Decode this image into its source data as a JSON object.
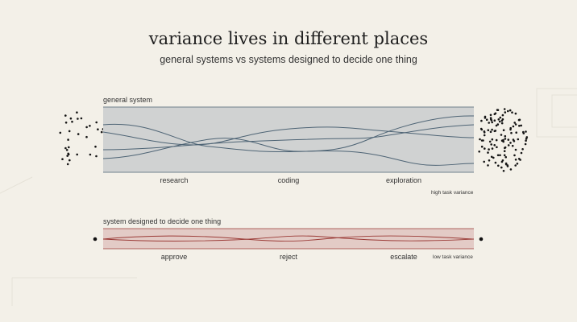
{
  "title": "variance lives in different places",
  "subtitle": "general systems vs systems designed to decide one thing",
  "general": {
    "label": "general system",
    "categories": [
      "research",
      "coding",
      "exploration"
    ],
    "note": "high task variance",
    "band_color": "#d0d2d2",
    "line_color": "#4e6475"
  },
  "decide": {
    "label": "system designed to decide one thing",
    "categories": [
      "approve",
      "reject",
      "escalate"
    ],
    "note": "low task variance",
    "band_color": "#e3cbc6",
    "line_color": "#9a3a36"
  }
}
